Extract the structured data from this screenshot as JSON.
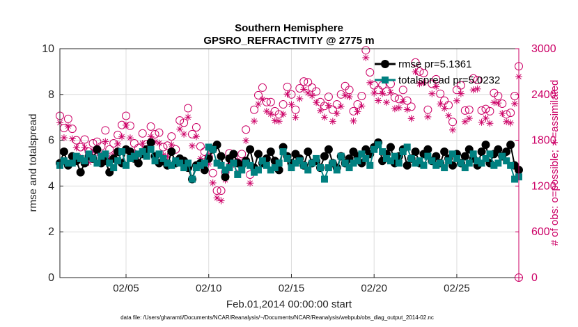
{
  "chart_data": {
    "type": "line",
    "title_line1": "Southern Hemisphere",
    "title_line2": "GPSRO_REFRACTIVITY @ 2775 m",
    "xlabel": "Feb.01,2014 00:00:00 start",
    "ylabel": "rmse and totalspread",
    "ylabel_right": "# of obs: o=possible; ∗=assimilated",
    "footnote": "data file: /Users/gharamti/Documents/NCAR/Reanalysis/~/Documents/NCAR/Reanalysis/webpub/obs_diag_output_2014-02.nc",
    "xlim": [
      1,
      28.75
    ],
    "ylim": [
      0,
      10
    ],
    "ylim_right": [
      0,
      3000
    ],
    "x_ticks": [
      5,
      10,
      15,
      20,
      25
    ],
    "x_tick_labels": [
      "02/05",
      "02/10",
      "02/15",
      "02/20",
      "02/25"
    ],
    "y_ticks": [
      0,
      2,
      4,
      6,
      8,
      10
    ],
    "y_tick_labels": [
      "0",
      "2",
      "4",
      "6",
      "8",
      "10"
    ],
    "y_right_ticks": [
      0,
      600,
      1200,
      1800,
      2400,
      3000
    ],
    "y_right_tick_labels": [
      "0",
      "600",
      "1200",
      "1800",
      "2400",
      "3000"
    ],
    "legend": [
      {
        "name": "rmse pr=5.1361",
        "color": "#000000"
      },
      {
        "name": "totalspread pr=5.0232",
        "color": "#008080"
      }
    ],
    "colors": {
      "rmse": "#000000",
      "spread": "#008080",
      "obs": "#cc0066",
      "grid": "#dcdcdc"
    },
    "x": [
      1.0,
      1.25,
      1.5,
      1.75,
      2.0,
      2.25,
      2.5,
      2.75,
      3.0,
      3.25,
      3.5,
      3.75,
      4.0,
      4.25,
      4.5,
      4.75,
      5.0,
      5.25,
      5.5,
      5.75,
      6.0,
      6.25,
      6.5,
      6.75,
      7.0,
      7.25,
      7.5,
      7.75,
      8.0,
      8.25,
      8.5,
      8.75,
      9.0,
      9.25,
      9.5,
      9.75,
      10.0,
      10.25,
      10.5,
      10.75,
      11.0,
      11.25,
      11.5,
      11.75,
      12.0,
      12.25,
      12.5,
      12.75,
      13.0,
      13.25,
      13.5,
      13.75,
      14.0,
      14.25,
      14.5,
      14.75,
      15.0,
      15.25,
      15.5,
      15.75,
      16.0,
      16.25,
      16.5,
      16.75,
      17.0,
      17.25,
      17.5,
      17.75,
      18.0,
      18.25,
      18.5,
      18.75,
      19.0,
      19.25,
      19.5,
      19.75,
      20.0,
      20.25,
      20.5,
      20.75,
      21.0,
      21.25,
      21.5,
      21.75,
      22.0,
      22.25,
      22.5,
      22.75,
      23.0,
      23.25,
      23.5,
      23.75,
      24.0,
      24.25,
      24.5,
      24.75,
      25.0,
      25.25,
      25.5,
      25.75,
      26.0,
      26.25,
      26.5,
      26.75,
      27.0,
      27.25,
      27.5,
      27.75,
      28.0,
      28.25,
      28.5,
      28.75
    ],
    "series": [
      {
        "name": "rmse",
        "values": [
          5.0,
          5.5,
          4.9,
          5.3,
          5.1,
          4.6,
          5.0,
          5.3,
          5.2,
          5.6,
          5.0,
          5.1,
          4.6,
          5.2,
          5.5,
          5.0,
          5.6,
          5.5,
          5.2,
          5.0,
          5.4,
          5.6,
          5.9,
          5.3,
          5.0,
          5.1,
          4.9,
          5.5,
          5.0,
          5.2,
          5.1,
          4.8,
          4.3,
          4.9,
          5.0,
          4.7,
          5.2,
          5.6,
          5.8,
          5.3,
          4.4,
          5.2,
          5.4,
          5.0,
          4.9,
          5.1,
          5.6,
          4.8,
          5.4,
          5.0,
          5.2,
          5.5,
          5.1,
          4.7,
          5.7,
          5.3,
          5.0,
          5.4,
          5.2,
          4.9,
          5.5,
          5.0,
          5.1,
          4.8,
          5.3,
          5.6,
          5.0,
          4.8,
          5.3,
          5.0,
          5.2,
          5.5,
          5.3,
          5.0,
          5.6,
          5.4,
          5.7,
          5.9,
          5.1,
          5.4,
          5.7,
          5.0,
          5.3,
          5.6,
          4.9,
          5.2,
          5.5,
          5.0,
          5.4,
          5.6,
          5.1,
          5.3,
          5.0,
          5.5,
          5.2,
          4.9,
          5.4,
          5.0,
          5.3,
          5.6,
          5.2,
          4.9,
          5.5,
          5.8,
          5.0,
          5.4,
          5.6,
          5.3,
          5.5,
          5.8,
          4.9,
          4.7
        ]
      },
      {
        "name": "totalspread",
        "values": [
          4.9,
          5.1,
          5.0,
          5.0,
          5.3,
          5.2,
          5.1,
          5.4,
          5.2,
          5.0,
          5.3,
          5.4,
          5.0,
          4.8,
          5.1,
          5.5,
          4.9,
          5.2,
          5.3,
          5.4,
          5.5,
          5.3,
          5.6,
          5.1,
          5.4,
          5.2,
          5.0,
          4.9,
          5.1,
          5.0,
          4.8,
          5.0,
          4.3,
          4.8,
          4.9,
          5.0,
          5.7,
          5.6,
          5.0,
          4.9,
          4.7,
          4.8,
          5.0,
          4.5,
          4.7,
          5.0,
          4.9,
          4.6,
          4.7,
          5.1,
          4.9,
          4.7,
          4.8,
          5.0,
          5.5,
          5.2,
          4.8,
          5.0,
          5.1,
          4.9,
          4.7,
          5.0,
          5.2,
          4.8,
          4.3,
          4.8,
          5.0,
          4.7,
          5.3,
          5.0,
          4.8,
          5.0,
          5.1,
          5.4,
          5.2,
          4.9,
          5.6,
          5.8,
          5.5,
          5.2,
          5.1,
          5.3,
          5.0,
          5.5,
          5.7,
          5.2,
          5.0,
          5.1,
          4.9,
          5.3,
          5.1,
          4.9,
          5.0,
          4.8,
          5.1,
          5.4,
          5.2,
          5.0,
          4.8,
          5.0,
          5.4,
          5.1,
          5.0,
          5.2,
          5.4,
          4.9,
          5.0,
          5.3,
          5.1,
          4.9,
          4.3,
          4.4
        ]
      }
    ],
    "obs_possible": [
      2120,
      1960,
      2080,
      1950,
      1800,
      1710,
      1810,
      1650,
      1760,
      1780,
      1720,
      1930,
      1680,
      1760,
      1870,
      2000,
      2120,
      1990,
      1760,
      1700,
      1890,
      1750,
      1980,
      1880,
      1900,
      1710,
      1730,
      1850,
      1680,
      2060,
      2030,
      2220,
      1880,
      1970,
      1720,
      1650,
      1580,
      1370,
      1140,
      1140,
      1380,
      1630,
      1590,
      1510,
      1620,
      1940,
      1350,
      2200,
      2390,
      2490,
      2300,
      2300,
      2180,
      2140,
      2270,
      2500,
      2400,
      2200,
      2480,
      2570,
      2560,
      2490,
      2440,
      2300,
      2250,
      2370,
      2200,
      2270,
      2400,
      2510,
      2460,
      2180,
      2270,
      2380,
      2980,
      2690,
      2520,
      2460,
      2520,
      2440,
      2540,
      2360,
      2340,
      2460,
      2320,
      2240,
      2820,
      2700,
      2680,
      2200,
      2540,
      2600,
      2410,
      2320,
      2260,
      2040,
      2460,
      2520,
      2190,
      2200,
      2610,
      2590,
      2190,
      2210,
      2180,
      2420,
      2380,
      2280,
      2140,
      2160,
      2380,
      2770
    ]
  }
}
